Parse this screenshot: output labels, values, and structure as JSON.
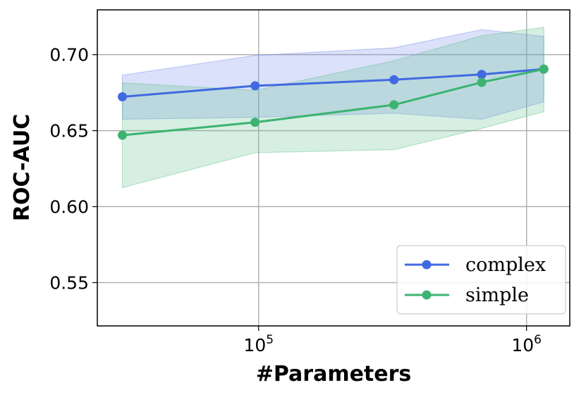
{
  "chart_data": {
    "type": "line",
    "xlabel": "#Parameters",
    "ylabel": "ROC-AUC",
    "x_scale": "log",
    "xlim": [
      25000,
      1450000
    ],
    "ylim": [
      0.5215,
      0.7295
    ],
    "x_ticks": [
      {
        "value": 100000,
        "base": "10",
        "exp": "5"
      },
      {
        "value": 1000000,
        "base": "10",
        "exp": "6"
      }
    ],
    "y_ticks": [
      {
        "value": 0.55,
        "label": "0.55"
      },
      {
        "value": 0.6,
        "label": "0.60"
      },
      {
        "value": 0.65,
        "label": "0.65"
      },
      {
        "value": 0.7,
        "label": "0.70"
      }
    ],
    "grid": true,
    "legend_position": "lower-right",
    "series": [
      {
        "name": "complex",
        "color": "#4169e1",
        "band_color": "#6f86ec",
        "x": [
          31000,
          97000,
          320000,
          680000,
          1160000
        ],
        "values": [
          0.6723,
          0.6795,
          0.6835,
          0.687,
          0.6905
        ],
        "lower": [
          0.6575,
          0.6588,
          0.6615,
          0.6575,
          0.669
        ],
        "upper": [
          0.6865,
          0.6995,
          0.7045,
          0.7165,
          0.712
        ]
      },
      {
        "name": "simple",
        "color": "#3cb371",
        "band_color": "#5cc08a",
        "x": [
          31000,
          97000,
          320000,
          680000,
          1160000
        ],
        "values": [
          0.647,
          0.6555,
          0.667,
          0.6818,
          0.6905
        ],
        "lower": [
          0.6125,
          0.6355,
          0.6375,
          0.6515,
          0.6625
        ],
        "upper": [
          0.6815,
          0.6765,
          0.696,
          0.7125,
          0.718
        ]
      }
    ]
  }
}
